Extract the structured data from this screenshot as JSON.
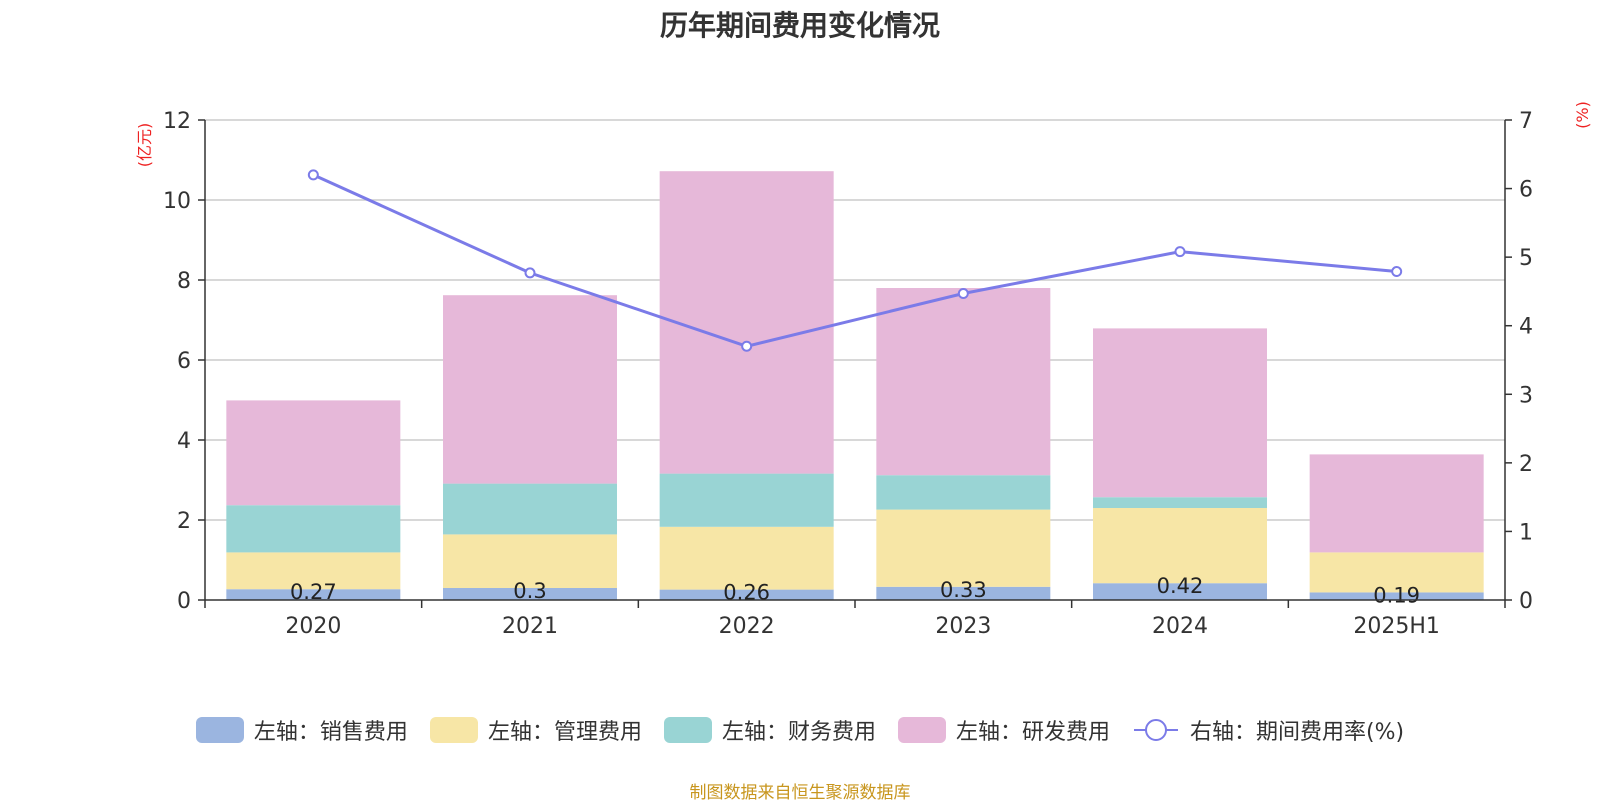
{
  "chart_data": {
    "type": "bar",
    "title": "历年期间费用变化情况",
    "categories": [
      "2020",
      "2021",
      "2022",
      "2023",
      "2024",
      "2025H1"
    ],
    "ylabel_left": "(亿元)",
    "ylabel_right": "(%)",
    "ylim_left": [
      0,
      12
    ],
    "yticks_left": [
      "0",
      "2",
      "4",
      "6",
      "8",
      "10",
      "12"
    ],
    "ylim_right": [
      0,
      7
    ],
    "yticks_right": [
      "0",
      "1",
      "2",
      "3",
      "4",
      "5",
      "6",
      "7"
    ],
    "grid": true,
    "stacked": true,
    "legend_position": "bottom",
    "series": [
      {
        "name": "左轴：销售费用",
        "axis": "left",
        "color": "#9bb5e0",
        "values": [
          0.27,
          0.3,
          0.26,
          0.33,
          0.42,
          0.19
        ],
        "labels": [
          "0.27",
          "0.3",
          "0.26",
          "0.33",
          "0.42",
          "0.19"
        ]
      },
      {
        "name": "左轴：管理费用",
        "axis": "left",
        "color": "#f7e6a6",
        "values": [
          0.92,
          1.34,
          1.57,
          1.93,
          1.88,
          1.0
        ]
      },
      {
        "name": "左轴：财务费用",
        "axis": "left",
        "color": "#99d4d4",
        "values": [
          1.18,
          1.27,
          1.33,
          0.86,
          0.27,
          0.0
        ]
      },
      {
        "name": "左轴：研发费用",
        "axis": "left",
        "color": "#e6b8d9",
        "values": [
          2.62,
          4.71,
          7.56,
          4.68,
          4.22,
          2.45
        ]
      },
      {
        "name": "右轴：期间费用率(%)",
        "axis": "right",
        "type": "line",
        "color": "#7b7be8",
        "values": [
          6.2,
          4.77,
          3.7,
          4.47,
          5.08,
          4.79
        ]
      }
    ]
  },
  "source": "制图数据来自恒生聚源数据库"
}
